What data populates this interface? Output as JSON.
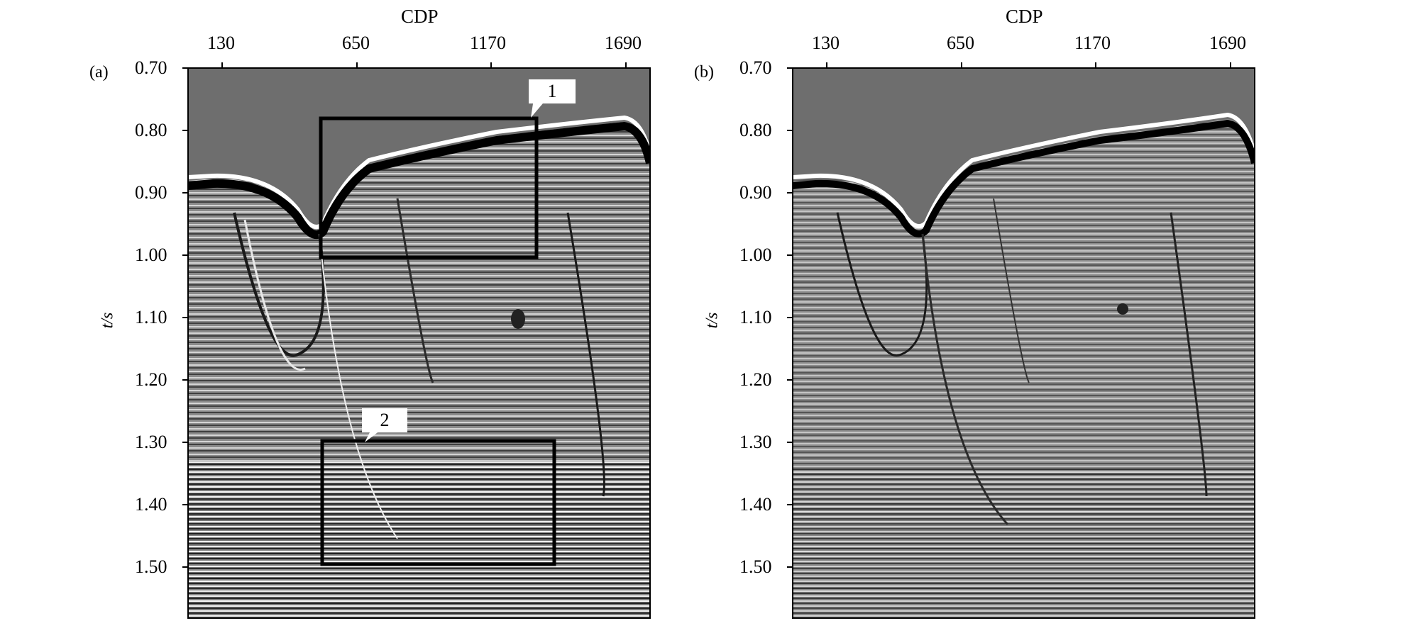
{
  "panels": [
    {
      "id": "a",
      "letter": "(a)",
      "x_axis_title": "CDP",
      "y_axis_title": "t/s",
      "x_ticks": [
        "130",
        "650",
        "1170",
        "1690"
      ],
      "y_ticks": [
        "0.70",
        "0.80",
        "0.90",
        "1.00",
        "1.10",
        "1.20",
        "1.30",
        "1.40",
        "1.50"
      ],
      "callouts": [
        "1",
        "2"
      ]
    },
    {
      "id": "b",
      "letter": "(b)",
      "x_axis_title": "CDP",
      "y_axis_title": "t/s",
      "x_ticks": [
        "130",
        "650",
        "1170",
        "1690"
      ],
      "y_ticks": [
        "0.70",
        "0.80",
        "0.90",
        "1.00",
        "1.10",
        "1.20",
        "1.30",
        "1.40",
        "1.50"
      ]
    }
  ],
  "colors": {
    "background_above_seafloor": "#6e6e6e",
    "seismic_mid": "#808080",
    "box_outline": "#000000",
    "callout_bg": "#ffffff"
  }
}
